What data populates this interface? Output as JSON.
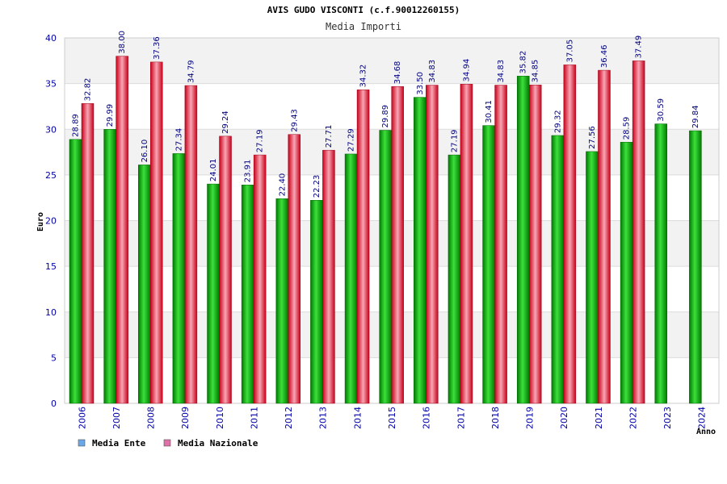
{
  "chart_data": {
    "type": "bar",
    "title": "AVIS GUDO VISCONTI (c.f.90012260155)",
    "subtitle": "Media Importi",
    "xlabel": "Anno",
    "ylabel": "Euro",
    "ylim": [
      0,
      40
    ],
    "yticks": [
      0,
      5,
      10,
      15,
      20,
      25,
      30,
      35,
      40
    ],
    "grid": true,
    "legend_position": "bottom-left",
    "categories": [
      "2006",
      "2007",
      "2008",
      "2009",
      "2010",
      "2011",
      "2012",
      "2013",
      "2014",
      "2015",
      "2016",
      "2017",
      "2018",
      "2019",
      "2020",
      "2021",
      "2022",
      "2023",
      "2024"
    ],
    "series": [
      {
        "name": "Media Ente",
        "color": "#00b000",
        "legend_color": "#6aa8e8",
        "values": [
          28.89,
          29.99,
          26.1,
          27.34,
          24.01,
          23.91,
          22.4,
          22.23,
          27.29,
          29.89,
          33.5,
          27.19,
          30.41,
          35.82,
          29.32,
          27.56,
          28.59,
          30.59,
          29.84
        ],
        "labels": [
          "28.89",
          "29.99",
          "26.10",
          "27.34",
          "24.01",
          "23.91",
          "22.40",
          "22.23",
          "27.29",
          "29.89",
          "33.50",
          "27.19",
          "30.41",
          "35.82",
          "29.32",
          "27.56",
          "28.59",
          "30.59",
          "29.84"
        ]
      },
      {
        "name": "Media Nazionale",
        "color": "#e02030",
        "legend_color": "#e070a8",
        "values": [
          32.82,
          38.0,
          37.36,
          34.79,
          29.24,
          27.19,
          29.43,
          27.71,
          34.32,
          34.68,
          34.83,
          34.94,
          34.83,
          34.85,
          37.05,
          36.46,
          37.49,
          null,
          null
        ],
        "labels": [
          "32.82",
          "38.00",
          "37.36",
          "34.79",
          "29.24",
          "27.19",
          "29.43",
          "27.71",
          "34.32",
          "34.68",
          "34.83",
          "34.94",
          "34.83",
          "34.85",
          "37.05",
          "36.46",
          "37.49",
          null,
          null
        ]
      }
    ]
  }
}
